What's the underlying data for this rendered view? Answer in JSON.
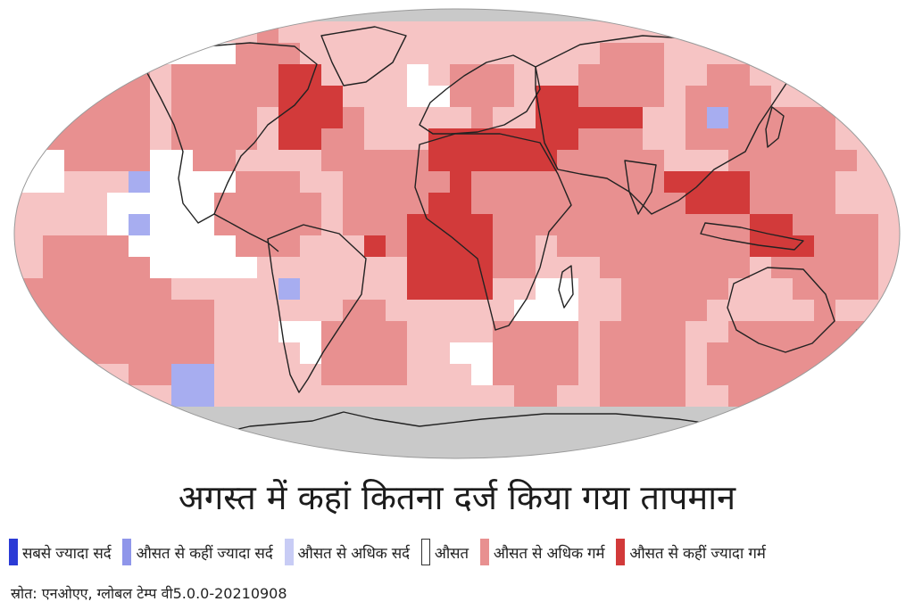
{
  "title": "अगस्त में कहां कितना दर्ज किया गया तापमान",
  "legend": [
    {
      "label": "सबसे ज्यादा सर्द",
      "color": "#2b3bd6",
      "border": "#2b3bd6"
    },
    {
      "label": "औसत से कहीं ज्यादा सर्द",
      "color": "#8f96ea",
      "border": "#8f96ea"
    },
    {
      "label": "औसत से अधिक सर्द",
      "color": "#c8ccf5",
      "border": "#c8ccf5"
    },
    {
      "label": "औसत",
      "color": "#ffffff",
      "border": "#333333"
    },
    {
      "label": "औसत से अधिक गर्म",
      "color": "#e89090",
      "border": "#e89090"
    },
    {
      "label": "औसत से कहीं ज्यादा गर्म",
      "color": "#d23a3a",
      "border": "#d23a3a"
    }
  ],
  "source": "स्रोत: एनओएए, ग्लोबल टेम्प वी5.0.0-20210908",
  "map": {
    "colors": {
      "nodata": "#c9c9c9",
      "average": "#ffffff",
      "warm": "#f6c4c4",
      "warmer": "#e89090",
      "warmest": "#d23a3a",
      "cool": "#c8ccf5",
      "cooler": "#a7adf0",
      "outline": "#222222"
    }
  }
}
